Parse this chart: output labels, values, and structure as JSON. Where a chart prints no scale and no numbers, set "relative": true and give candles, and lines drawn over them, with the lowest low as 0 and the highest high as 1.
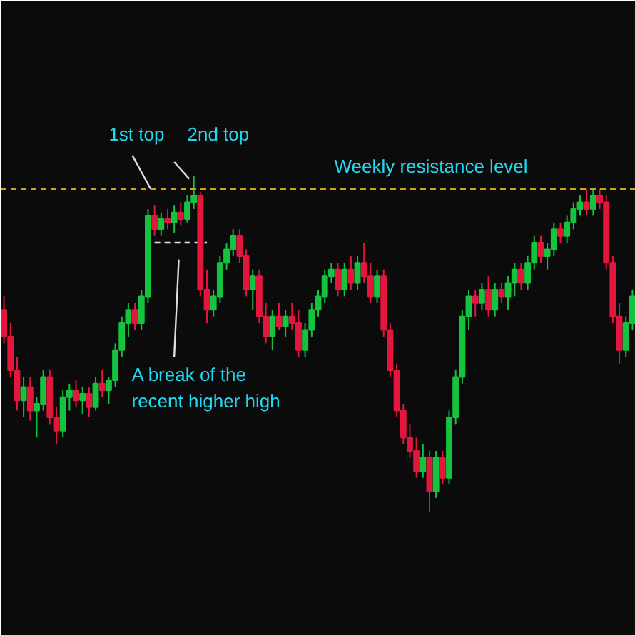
{
  "chart_data": {
    "type": "candlestick",
    "relative": true,
    "categories": [
      null,
      null,
      null,
      null,
      null,
      null,
      null,
      null,
      null,
      null,
      null,
      null,
      null,
      null,
      null,
      null,
      null,
      null,
      null,
      null,
      null,
      null,
      null,
      null,
      null,
      null,
      null,
      null,
      null,
      null,
      null,
      null,
      null,
      null,
      null,
      null,
      null,
      null,
      null,
      null,
      null,
      null,
      null,
      null,
      null,
      null,
      null,
      null,
      null,
      null,
      null,
      null,
      null,
      null,
      null,
      null,
      null,
      null,
      null,
      null,
      null,
      null,
      null,
      null,
      null,
      null,
      null,
      null,
      null,
      null,
      null,
      null,
      null,
      null,
      null,
      null,
      null,
      null,
      null,
      null,
      null,
      null,
      null,
      null,
      null,
      null,
      null,
      null,
      null,
      null,
      null,
      null,
      null,
      null,
      null,
      null,
      null
    ],
    "ohlc": [
      [
        0.6,
        0.64,
        0.5,
        0.52
      ],
      [
        0.52,
        0.56,
        0.4,
        0.42
      ],
      [
        0.42,
        0.46,
        0.3,
        0.33
      ],
      [
        0.33,
        0.4,
        0.28,
        0.37
      ],
      [
        0.37,
        0.4,
        0.27,
        0.3
      ],
      [
        0.3,
        0.34,
        0.22,
        0.32
      ],
      [
        0.32,
        0.42,
        0.3,
        0.4
      ],
      [
        0.4,
        0.42,
        0.26,
        0.28
      ],
      [
        0.28,
        0.31,
        0.2,
        0.24
      ],
      [
        0.24,
        0.36,
        0.22,
        0.34
      ],
      [
        0.34,
        0.38,
        0.3,
        0.36
      ],
      [
        0.36,
        0.39,
        0.31,
        0.33
      ],
      [
        0.33,
        0.37,
        0.29,
        0.35
      ],
      [
        0.35,
        0.37,
        0.28,
        0.31
      ],
      [
        0.31,
        0.4,
        0.3,
        0.38
      ],
      [
        0.38,
        0.42,
        0.34,
        0.36
      ],
      [
        0.36,
        0.4,
        0.32,
        0.39
      ],
      [
        0.39,
        0.5,
        0.37,
        0.48
      ],
      [
        0.48,
        0.58,
        0.46,
        0.56
      ],
      [
        0.56,
        0.62,
        0.52,
        0.6
      ],
      [
        0.6,
        0.62,
        0.54,
        0.56
      ],
      [
        0.56,
        0.66,
        0.54,
        0.64
      ],
      [
        0.64,
        0.9,
        0.62,
        0.88
      ],
      [
        0.88,
        0.91,
        0.82,
        0.84
      ],
      [
        0.84,
        0.89,
        0.82,
        0.87
      ],
      [
        0.87,
        0.9,
        0.84,
        0.86
      ],
      [
        0.86,
        0.91,
        0.83,
        0.89
      ],
      [
        0.89,
        0.92,
        0.85,
        0.87
      ],
      [
        0.87,
        0.94,
        0.86,
        0.92
      ],
      [
        0.92,
        1.0,
        0.9,
        0.94
      ],
      [
        0.94,
        0.95,
        0.64,
        0.66
      ],
      [
        0.66,
        0.72,
        0.56,
        0.6
      ],
      [
        0.6,
        0.66,
        0.58,
        0.64
      ],
      [
        0.64,
        0.76,
        0.62,
        0.74
      ],
      [
        0.74,
        0.8,
        0.72,
        0.78
      ],
      [
        0.78,
        0.84,
        0.76,
        0.82
      ],
      [
        0.82,
        0.84,
        0.74,
        0.76
      ],
      [
        0.76,
        0.78,
        0.64,
        0.66
      ],
      [
        0.66,
        0.72,
        0.6,
        0.7
      ],
      [
        0.7,
        0.72,
        0.56,
        0.58
      ],
      [
        0.58,
        0.62,
        0.5,
        0.52
      ],
      [
        0.52,
        0.6,
        0.48,
        0.58
      ],
      [
        0.58,
        0.62,
        0.54,
        0.55
      ],
      [
        0.55,
        0.6,
        0.52,
        0.58
      ],
      [
        0.58,
        0.62,
        0.54,
        0.56
      ],
      [
        0.56,
        0.6,
        0.46,
        0.48
      ],
      [
        0.48,
        0.56,
        0.46,
        0.54
      ],
      [
        0.54,
        0.62,
        0.52,
        0.6
      ],
      [
        0.6,
        0.66,
        0.58,
        0.64
      ],
      [
        0.64,
        0.72,
        0.62,
        0.7
      ],
      [
        0.7,
        0.74,
        0.68,
        0.72
      ],
      [
        0.72,
        0.74,
        0.64,
        0.66
      ],
      [
        0.66,
        0.74,
        0.64,
        0.72
      ],
      [
        0.72,
        0.76,
        0.66,
        0.68
      ],
      [
        0.68,
        0.76,
        0.66,
        0.74
      ],
      [
        0.74,
        0.8,
        0.68,
        0.7
      ],
      [
        0.7,
        0.74,
        0.62,
        0.64
      ],
      [
        0.64,
        0.72,
        0.62,
        0.7
      ],
      [
        0.7,
        0.72,
        0.52,
        0.54
      ],
      [
        0.54,
        0.56,
        0.4,
        0.42
      ],
      [
        0.42,
        0.44,
        0.28,
        0.3
      ],
      [
        0.3,
        0.32,
        0.2,
        0.22
      ],
      [
        0.22,
        0.26,
        0.16,
        0.18
      ],
      [
        0.18,
        0.22,
        0.1,
        0.12
      ],
      [
        0.12,
        0.2,
        0.1,
        0.16
      ],
      [
        0.16,
        0.18,
        0.0,
        0.06
      ],
      [
        0.06,
        0.18,
        0.04,
        0.16
      ],
      [
        0.16,
        0.18,
        0.08,
        0.1
      ],
      [
        0.1,
        0.3,
        0.08,
        0.28
      ],
      [
        0.28,
        0.42,
        0.26,
        0.4
      ],
      [
        0.4,
        0.6,
        0.38,
        0.58
      ],
      [
        0.58,
        0.66,
        0.54,
        0.64
      ],
      [
        0.64,
        0.66,
        0.58,
        0.62
      ],
      [
        0.62,
        0.68,
        0.6,
        0.66
      ],
      [
        0.66,
        0.7,
        0.58,
        0.6
      ],
      [
        0.6,
        0.68,
        0.58,
        0.66
      ],
      [
        0.66,
        0.68,
        0.62,
        0.64
      ],
      [
        0.64,
        0.7,
        0.6,
        0.68
      ],
      [
        0.68,
        0.74,
        0.64,
        0.72
      ],
      [
        0.72,
        0.74,
        0.66,
        0.68
      ],
      [
        0.68,
        0.76,
        0.66,
        0.74
      ],
      [
        0.74,
        0.82,
        0.72,
        0.8
      ],
      [
        0.8,
        0.82,
        0.74,
        0.76
      ],
      [
        0.76,
        0.8,
        0.72,
        0.78
      ],
      [
        0.78,
        0.86,
        0.76,
        0.84
      ],
      [
        0.84,
        0.86,
        0.8,
        0.82
      ],
      [
        0.82,
        0.88,
        0.8,
        0.86
      ],
      [
        0.86,
        0.92,
        0.84,
        0.9
      ],
      [
        0.9,
        0.94,
        0.88,
        0.92
      ],
      [
        0.92,
        0.96,
        0.88,
        0.9
      ],
      [
        0.9,
        0.96,
        0.88,
        0.94
      ],
      [
        0.94,
        0.96,
        0.9,
        0.92
      ],
      [
        0.92,
        0.94,
        0.72,
        0.74
      ],
      [
        0.74,
        0.76,
        0.56,
        0.58
      ],
      [
        0.58,
        0.62,
        0.44,
        0.48
      ],
      [
        0.48,
        0.58,
        0.46,
        0.56
      ],
      [
        0.56,
        0.66,
        0.54,
        0.64
      ]
    ],
    "ref_lines": [
      {
        "axis": "y",
        "value": 0.96,
        "label": "Weekly resistance level",
        "color": "#d4a20a",
        "line_style": "dashed"
      }
    ],
    "series": [
      {
        "type": "line",
        "color": "#dddddd",
        "line_style": "dashed",
        "values": [
          null,
          null,
          null,
          null,
          null,
          null,
          null,
          null,
          null,
          null,
          null,
          null,
          null,
          null,
          null,
          null,
          null,
          null,
          null,
          null,
          null,
          null,
          null,
          0.8,
          0.8,
          0.8,
          0.8,
          0.8,
          0.8,
          0.8,
          0.8,
          0.8,
          null,
          null,
          null,
          null,
          null,
          null,
          null,
          null,
          null,
          null,
          null,
          null,
          null,
          null,
          null,
          null,
          null,
          null,
          null,
          null,
          null,
          null,
          null,
          null,
          null,
          null,
          null,
          null,
          null,
          null,
          null,
          null,
          null,
          null,
          null,
          null,
          null,
          null,
          null,
          null,
          null,
          null,
          null,
          null,
          null,
          null,
          null,
          null,
          null,
          null,
          null,
          null,
          null,
          null,
          null,
          null,
          null,
          null,
          null,
          null,
          null,
          null,
          null,
          null,
          null
        ]
      }
    ],
    "annotations": [
      "1st top",
      "2nd top",
      "A break of the\nrecent higher high"
    ]
  }
}
